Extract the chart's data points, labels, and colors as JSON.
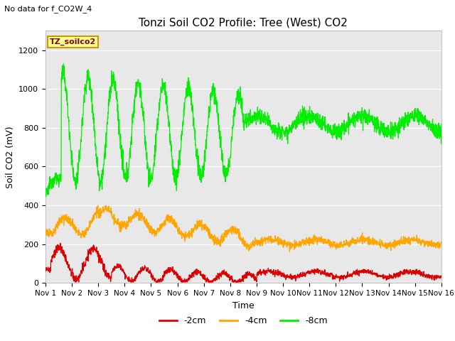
{
  "title": "Tonzi Soil CO2 Profile: Tree (West) CO2",
  "subtitle": "No data for f_CO2W_4",
  "xlabel": "Time",
  "ylabel": "Soil CO2 (mV)",
  "ylim": [
    0,
    1300
  ],
  "yticks": [
    0,
    200,
    400,
    600,
    800,
    1000,
    1200
  ],
  "xlim": [
    0,
    15
  ],
  "xtick_labels": [
    "Nov 1",
    "Nov 2",
    "Nov 3",
    "Nov 4",
    "Nov 5",
    "Nov 6",
    "Nov 7",
    "Nov 8",
    "Nov 9",
    "Nov 10",
    "Nov 11",
    "Nov 12",
    "Nov 13",
    "Nov 14",
    "Nov 15",
    "Nov 16"
  ],
  "legend_label": "TZ_soilco2",
  "series_labels": [
    "-2cm",
    "-4cm",
    "-8cm"
  ],
  "series_colors": [
    "#dd0000",
    "#ffa500",
    "#00ee00"
  ],
  "bg_color": "#e8e8e8",
  "fig_bg_color": "#ffffff",
  "grid_color": "#ffffff",
  "title_fontsize": 11,
  "axis_fontsize": 9,
  "tick_fontsize": 8,
  "legend_box_facecolor": "#ffff99",
  "legend_box_edgecolor": "#cc9900",
  "legend_text_color": "#880000"
}
